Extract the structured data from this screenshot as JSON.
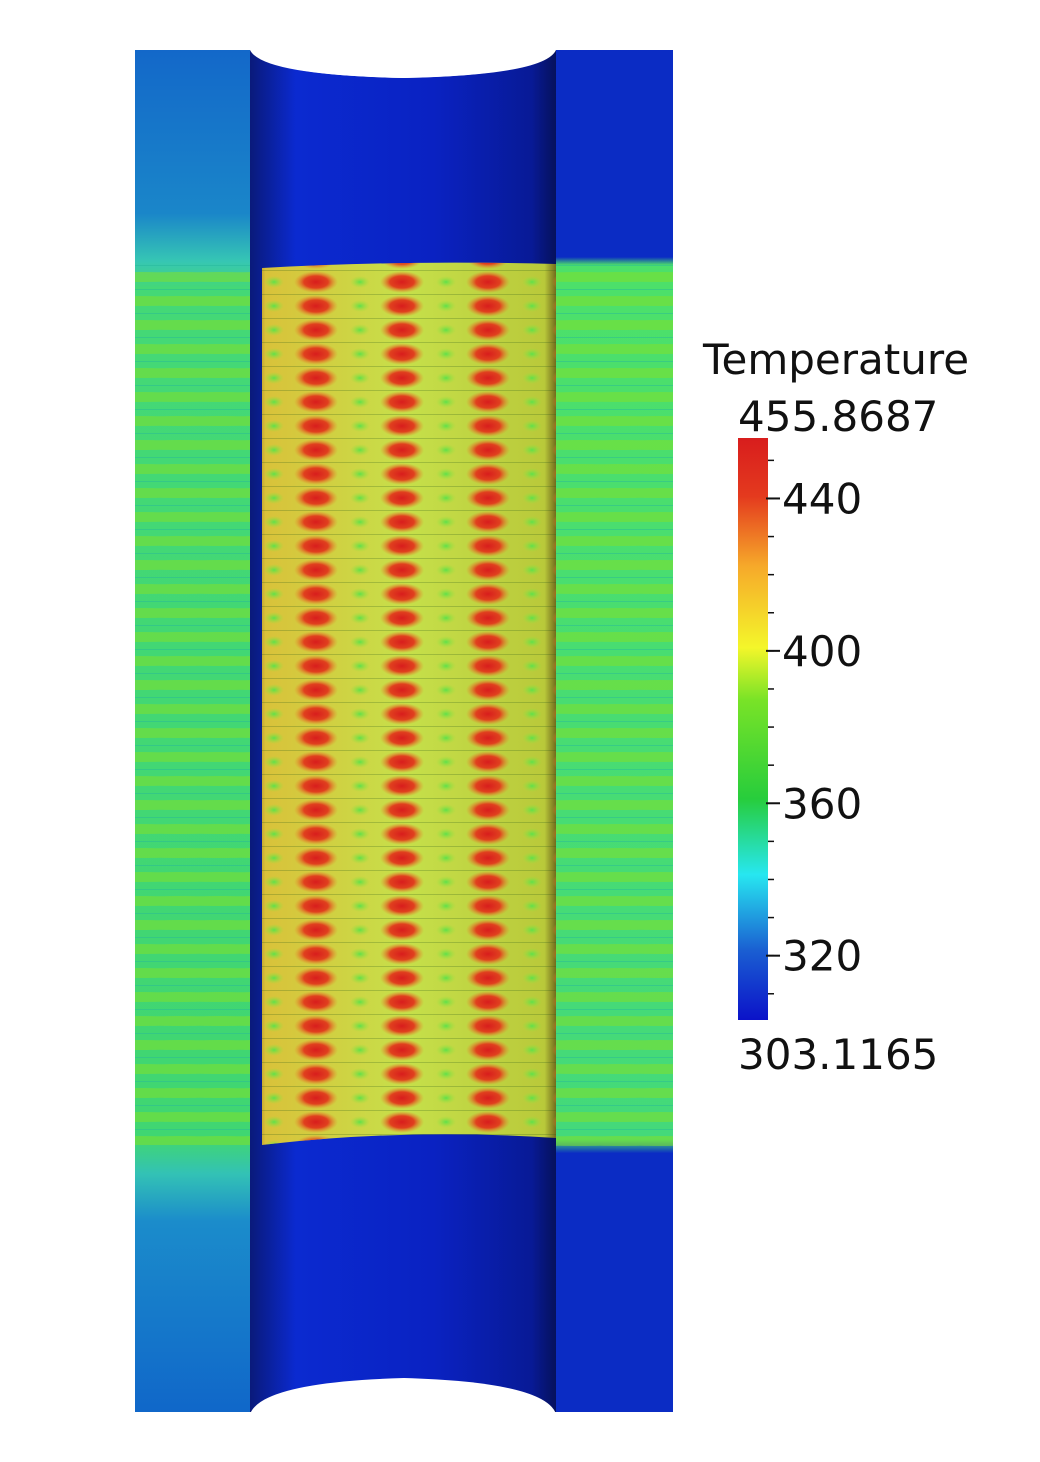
{
  "colorbar": {
    "title": "Temperature",
    "max_label": "455.8687",
    "min_label": "303.1165",
    "min": 303.1165,
    "max": 455.8687,
    "ticks": [
      {
        "value": 440,
        "label": "440"
      },
      {
        "value": 400,
        "label": "400"
      },
      {
        "value": 360,
        "label": "360"
      },
      {
        "value": 320,
        "label": "320"
      }
    ],
    "colormap": [
      "#0b12c9",
      "#1a5fd2",
      "#27e7f0",
      "#27cd3c",
      "#79e327",
      "#f4f62a",
      "#f6a92a",
      "#e43a1e",
      "#d81d1d"
    ]
  },
  "colors": {
    "cold_blue": "#0a1fb7",
    "wall_blue": "#1a73c8",
    "warm_green": "#3ddc63",
    "hot_red": "#d8301d",
    "background": "#ffffff"
  }
}
